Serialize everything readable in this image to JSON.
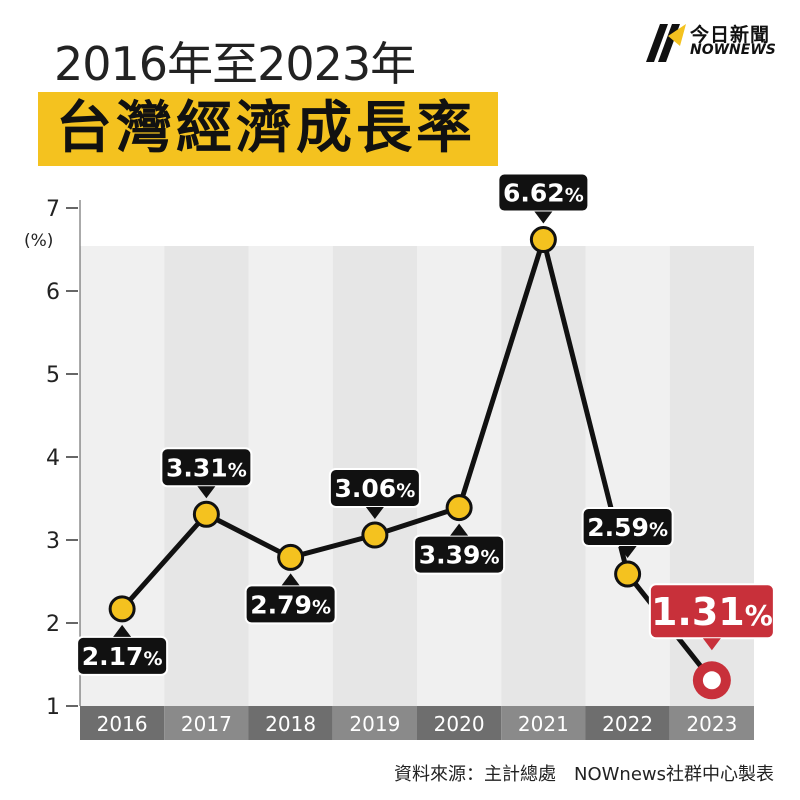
{
  "header": {
    "title_top": "2016年至2023年",
    "title_main": "台灣經濟成長率"
  },
  "logo": {
    "name_zh": "今日新聞",
    "name_en": "NOWNEWS"
  },
  "footer": {
    "source": "資料來源：主計總處　NOWnews社群中心製表"
  },
  "colors": {
    "accent": "#f4c21f",
    "highlight": "#c8303a",
    "line": "#111111",
    "label_bg": "#111111",
    "category_bg": "#6e6e6e"
  },
  "chart_data": {
    "type": "line",
    "title": "台灣經濟成長率",
    "xlabel": "",
    "ylabel": "(%)",
    "ylim": [
      1,
      7
    ],
    "yticks": [
      1,
      2,
      3,
      4,
      5,
      6,
      7
    ],
    "categories": [
      "2016",
      "2017",
      "2018",
      "2019",
      "2020",
      "2021",
      "2022",
      "2023"
    ],
    "series": [
      {
        "name": "經濟成長率",
        "values": [
          2.17,
          3.31,
          2.79,
          3.06,
          3.39,
          6.62,
          2.59,
          1.31
        ],
        "labels": [
          "2.17%",
          "3.31%",
          "2.79%",
          "3.06%",
          "3.39%",
          "6.62%",
          "2.59%",
          "1.31%"
        ],
        "label_positions": [
          "below",
          "above",
          "below",
          "above",
          "below",
          "above",
          "above",
          "above"
        ],
        "highlight_index": 7
      }
    ]
  }
}
